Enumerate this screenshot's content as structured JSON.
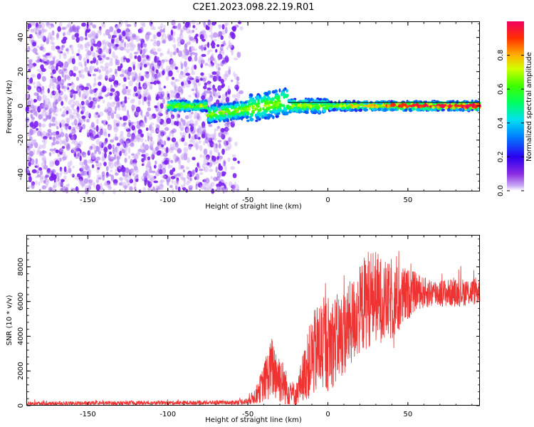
{
  "figure_title": "C2E1.2023.098.22.19.R01",
  "chart_data": [
    {
      "type": "heatmap",
      "title": "",
      "xlabel": "Height of straight line (km)",
      "ylabel": "Frequency (Hz)",
      "xlim": [
        -188,
        95
      ],
      "ylim": [
        -50,
        49
      ],
      "xticks": [
        -150,
        -100,
        -50,
        0,
        50
      ],
      "yticks": [
        -40,
        -20,
        0,
        20,
        40
      ],
      "colorbar": {
        "label": "Normalized spectral amplitude",
        "range": [
          0.0,
          1.0
        ],
        "ticks": [
          0.0,
          0.2,
          0.4,
          0.6,
          0.8
        ],
        "colormap": "rainbow"
      },
      "regions": [
        {
          "name": "noise",
          "x_range": [
            -188,
            -58
          ],
          "freq_range": [
            -50,
            49
          ],
          "amplitude": [
            0.05,
            0.2
          ]
        },
        {
          "name": "signal-band",
          "x_range": [
            -100,
            95
          ],
          "center_freq": 0,
          "amplitude": [
            0.2,
            1.0
          ]
        }
      ],
      "colors": {
        "line": "#000000"
      }
    },
    {
      "type": "line",
      "title": "",
      "xlabel": "Height of straight line (km)",
      "ylabel": "SNR (10 * v/v)",
      "xlim": [
        -188,
        95
      ],
      "ylim": [
        0,
        9800
      ],
      "xticks": [
        -150,
        -100,
        -50,
        0,
        50
      ],
      "yticks": [
        0,
        2000,
        4000,
        6000,
        8000
      ],
      "series": [
        {
          "name": "SNR",
          "color": "#ee3333",
          "envelope": {
            "x": [
              -188,
              -60,
              -50,
              -45,
              -40,
              -35,
              -30,
              -25,
              -20,
              -15,
              -10,
              -5,
              0,
              5,
              10,
              15,
              20,
              25,
              30,
              35,
              40,
              45,
              50,
              55,
              60,
              70,
              80,
              95
            ],
            "mean": [
              120,
              180,
              250,
              600,
              1300,
              2200,
              1600,
              900,
              600,
              1800,
              2800,
              3400,
              3600,
              3800,
              4200,
              4800,
              5500,
              6200,
              6300,
              6000,
              5900,
              6100,
              6400,
              6600,
              6500,
              6500,
              6500,
              6600
            ],
            "spread": [
              120,
              120,
              200,
              500,
              1100,
              1800,
              1500,
              900,
              600,
              1500,
              2400,
              2800,
              2800,
              2600,
              2500,
              2500,
              2600,
              2900,
              2700,
              2400,
              2200,
              2000,
              1500,
              1100,
              900,
              800,
              800,
              800
            ]
          }
        }
      ]
    }
  ]
}
